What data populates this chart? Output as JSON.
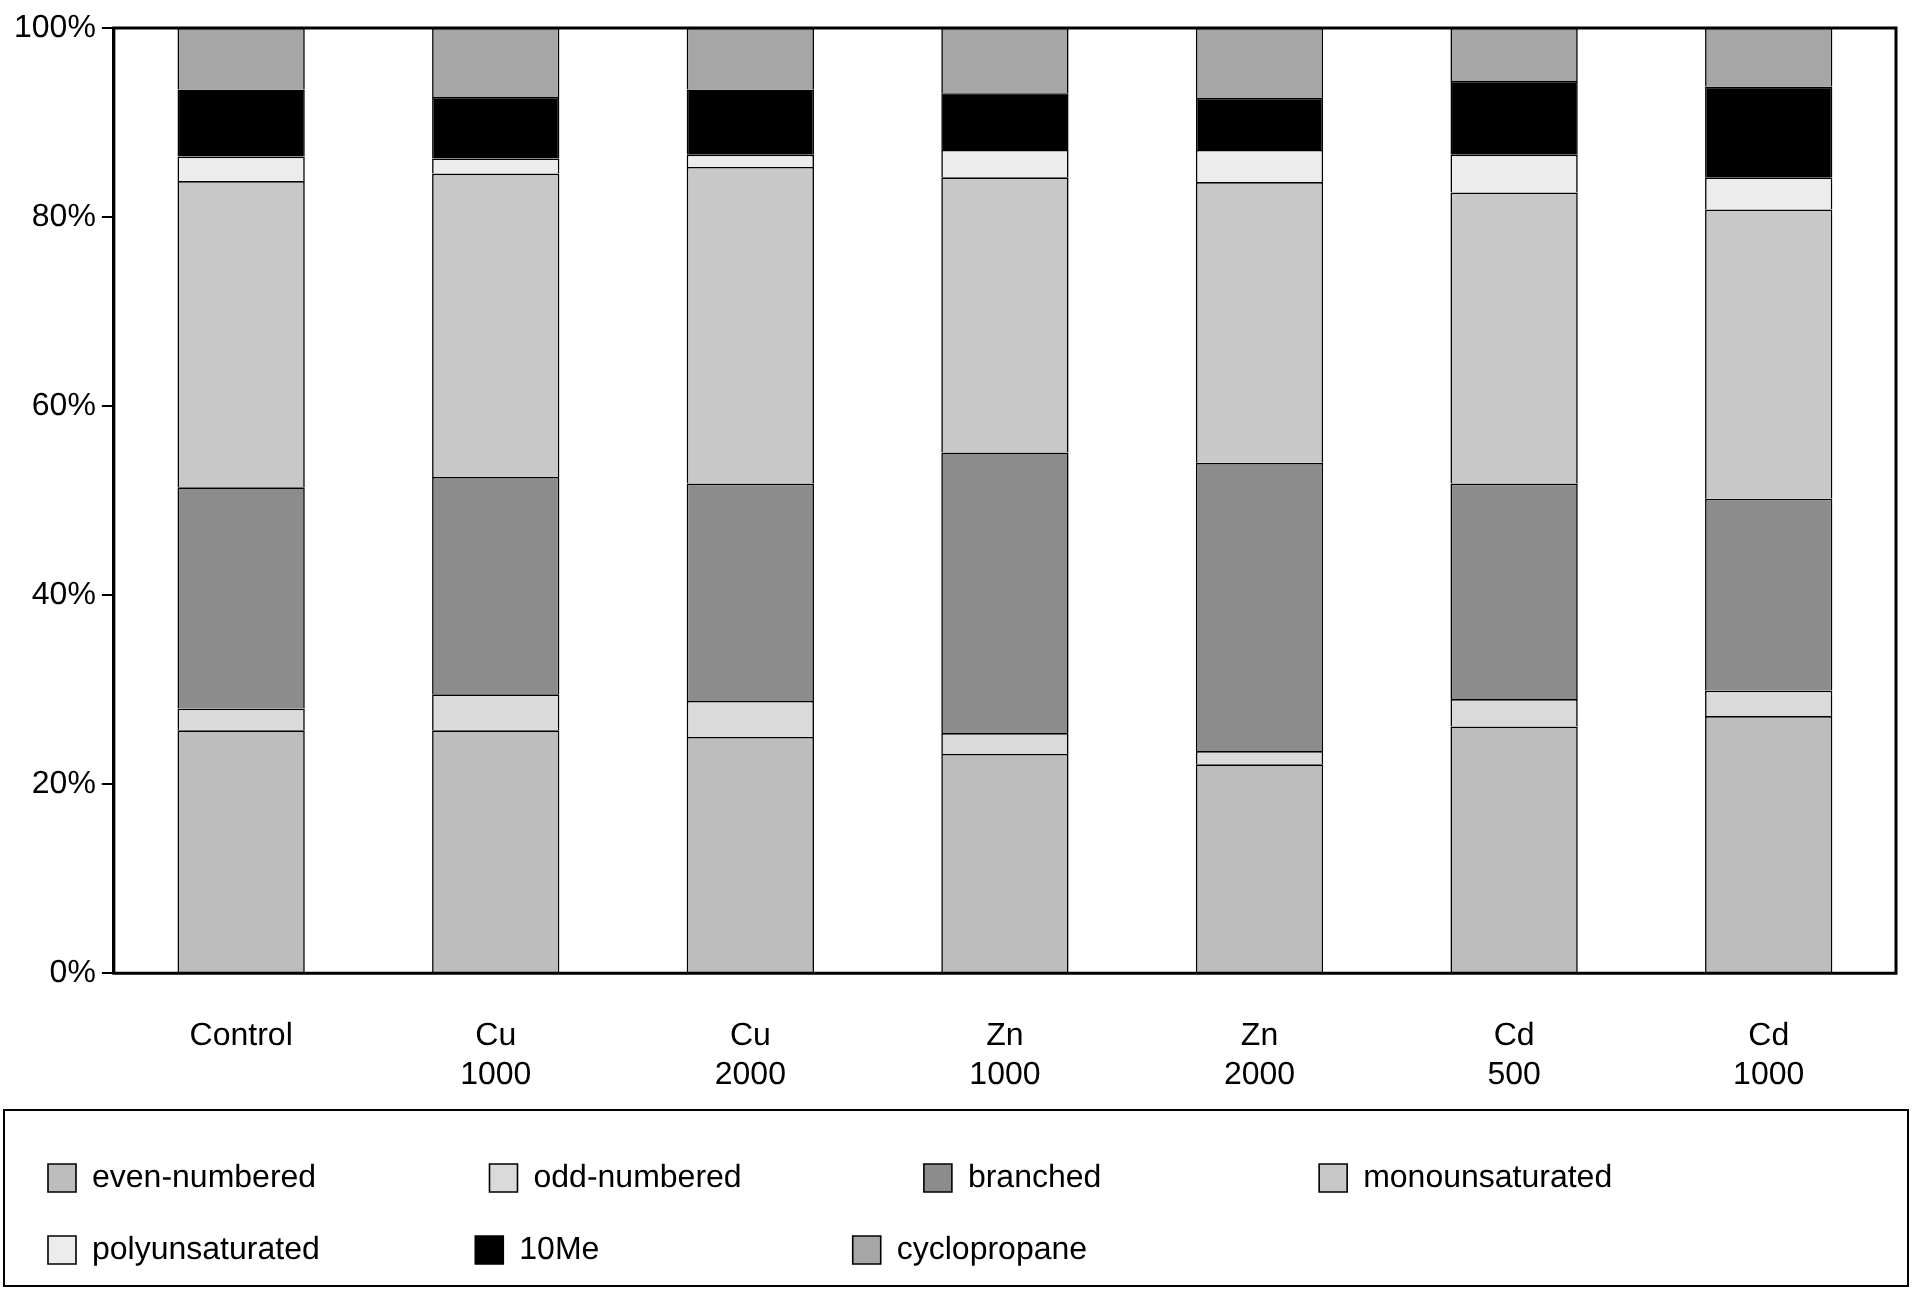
{
  "chart_data": {
    "type": "bar",
    "stacked": true,
    "categories": [
      "Control",
      "Cu 1000",
      "Cu 2000",
      "Zn 1000",
      "Zn 2000",
      "Cd 500",
      "Cd 1000"
    ],
    "ylim": [
      0,
      100
    ],
    "yticks": [
      {
        "value": 0,
        "label": "0%"
      },
      {
        "value": 20,
        "label": "20%"
      },
      {
        "value": 40,
        "label": "40%"
      },
      {
        "value": 60,
        "label": "60%"
      },
      {
        "value": 80,
        "label": "80%"
      },
      {
        "value": 100,
        "label": "100%"
      }
    ],
    "grid": false,
    "legend": "bottom",
    "series": [
      {
        "name": "even-numbered",
        "color": "#bdbdbd",
        "values": [
          25.7,
          25.7,
          25.0,
          23.2,
          22.1,
          26.1,
          27.2
        ]
      },
      {
        "name": "odd-numbered",
        "color": "#dadada",
        "values": [
          2.3,
          3.8,
          3.8,
          2.2,
          1.4,
          2.9,
          2.7
        ]
      },
      {
        "name": "branched",
        "color": "#8c8c8c",
        "values": [
          23.4,
          23.0,
          23.0,
          29.7,
          30.5,
          22.8,
          20.3
        ]
      },
      {
        "name": "monounsaturated",
        "color": "#c8c8c8",
        "values": [
          32.4,
          32.1,
          33.5,
          29.1,
          29.7,
          30.8,
          30.6
        ]
      },
      {
        "name": "polyunsaturated",
        "color": "#ececec",
        "values": [
          2.6,
          1.6,
          1.3,
          2.9,
          3.4,
          4.0,
          3.4
        ]
      },
      {
        "name": "10Me",
        "color": "#000000",
        "values": [
          7.1,
          6.5,
          6.9,
          6.0,
          5.5,
          7.8,
          9.6
        ]
      },
      {
        "name": "cyclopropane",
        "color": "#a6a6a6",
        "values": [
          6.5,
          7.3,
          6.5,
          6.9,
          7.4,
          5.6,
          6.2
        ]
      }
    ]
  }
}
